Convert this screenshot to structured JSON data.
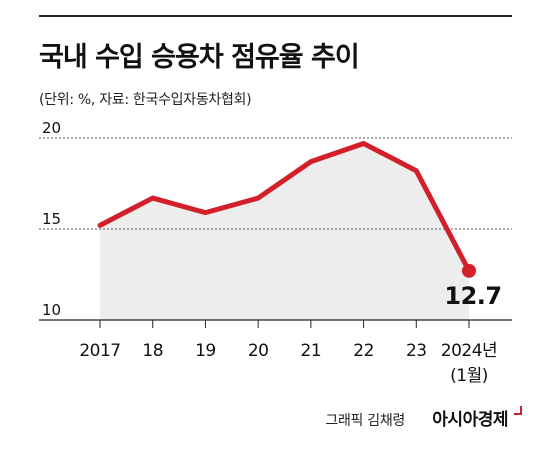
{
  "header": {
    "title": "국내 수입 승용차 점유율 추이",
    "subtitle": "(단위: %, 자료: 한국수입자동차협회)"
  },
  "footer": {
    "credit": "그래픽 김채령",
    "brand": "아시아경제"
  },
  "colors": {
    "line": "#d31f2a",
    "area": "#ededed",
    "grid": "#555555",
    "text": "#111111"
  },
  "chart_data": {
    "type": "area",
    "title": "국내 수입 승용차 점유율 추이",
    "subtitle": "(단위: %, 자료: 한국수입자동차협회)",
    "categories": [
      "2017",
      "18",
      "19",
      "20",
      "21",
      "22",
      "23",
      "2024년"
    ],
    "category_notes": [
      "",
      "",
      "",
      "",
      "",
      "",
      "",
      "(1월)"
    ],
    "values": [
      15.2,
      16.7,
      15.9,
      16.7,
      18.7,
      19.7,
      18.2,
      12.7
    ],
    "ylim": [
      10,
      20
    ],
    "yticks": [
      10,
      15,
      20
    ],
    "annotations": [
      {
        "category": "2024년",
        "text": "12.7"
      }
    ],
    "grid": "horizontal",
    "legend": "none"
  }
}
